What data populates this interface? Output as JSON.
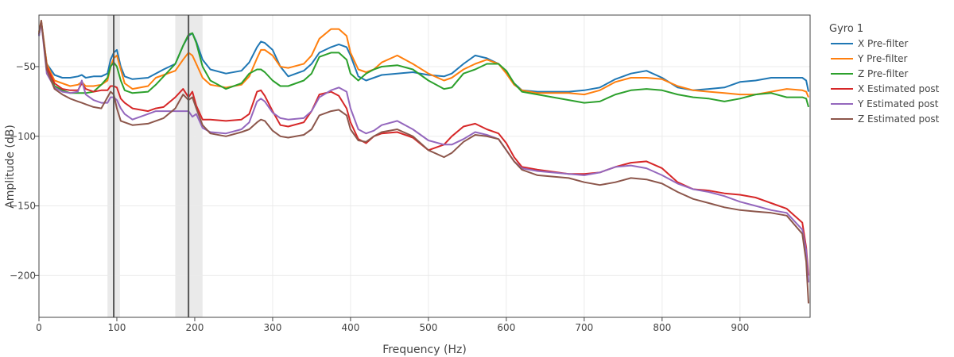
{
  "chart_data": {
    "type": "line",
    "xlabel": "Frequency (Hz)",
    "ylabel": "Amplitude (dB)",
    "xlim": [
      0,
      990
    ],
    "ylim": [
      -230,
      -13
    ],
    "xticks": [
      0,
      100,
      200,
      300,
      400,
      500,
      600,
      700,
      800,
      900
    ],
    "yticks": [
      -200,
      -150,
      -100,
      -50
    ],
    "grid": true,
    "legend": {
      "title": "Gyro 1",
      "placement": "right"
    },
    "bands": [
      {
        "from": 88,
        "to": 104,
        "center": 96
      },
      {
        "from": 175,
        "to": 210,
        "center": 192
      }
    ],
    "series": [
      {
        "name": "X Pre-filter",
        "color": "#1f77b4",
        "x": [
          0,
          3,
          10,
          20,
          30,
          40,
          50,
          55,
          60,
          70,
          80,
          88,
          92,
          96,
          100,
          105,
          110,
          120,
          140,
          150,
          160,
          175,
          185,
          192,
          197,
          202,
          210,
          220,
          240,
          260,
          270,
          280,
          285,
          290,
          300,
          310,
          320,
          340,
          350,
          360,
          375,
          385,
          395,
          400,
          410,
          420,
          430,
          440,
          460,
          480,
          500,
          520,
          530,
          545,
          560,
          575,
          590,
          600,
          610,
          620,
          640,
          680,
          700,
          720,
          740,
          760,
          780,
          800,
          820,
          840,
          860,
          880,
          900,
          920,
          940,
          960,
          980,
          985,
          988
        ],
        "y": [
          -28,
          -18,
          -48,
          -56,
          -58,
          -58,
          -57,
          -56,
          -58,
          -57,
          -57,
          -55,
          -45,
          -40,
          -38,
          -50,
          -57,
          -59,
          -58,
          -55,
          -52,
          -48,
          -35,
          -28,
          -26,
          -32,
          -45,
          -52,
          -55,
          -53,
          -47,
          -36,
          -32,
          -33,
          -38,
          -50,
          -57,
          -53,
          -48,
          -40,
          -36,
          -34,
          -36,
          -42,
          -57,
          -60,
          -58,
          -56,
          -55,
          -54,
          -56,
          -57,
          -55,
          -48,
          -42,
          -44,
          -48,
          -54,
          -62,
          -67,
          -68,
          -68,
          -67,
          -65,
          -59,
          -55,
          -53,
          -58,
          -65,
          -67,
          -66,
          -65,
          -61,
          -60,
          -58,
          -58,
          -58,
          -60,
          -68
        ]
      },
      {
        "name": "Y Pre-filter",
        "color": "#ff7f0e",
        "x": [
          0,
          3,
          10,
          20,
          30,
          40,
          50,
          55,
          60,
          70,
          80,
          88,
          92,
          96,
          100,
          105,
          110,
          120,
          140,
          150,
          160,
          175,
          185,
          192,
          197,
          202,
          210,
          220,
          240,
          260,
          270,
          280,
          285,
          290,
          300,
          310,
          320,
          340,
          350,
          360,
          375,
          385,
          395,
          400,
          410,
          420,
          430,
          440,
          460,
          480,
          500,
          520,
          530,
          545,
          560,
          575,
          590,
          600,
          610,
          620,
          640,
          680,
          700,
          720,
          740,
          760,
          780,
          800,
          820,
          840,
          860,
          880,
          900,
          920,
          940,
          960,
          980,
          985,
          988
        ],
        "y": [
          -25,
          -17,
          -48,
          -60,
          -62,
          -64,
          -63,
          -61,
          -64,
          -64,
          -63,
          -60,
          -50,
          -44,
          -42,
          -52,
          -62,
          -66,
          -64,
          -58,
          -56,
          -53,
          -45,
          -40,
          -42,
          -48,
          -58,
          -63,
          -65,
          -63,
          -57,
          -44,
          -38,
          -38,
          -42,
          -50,
          -51,
          -48,
          -42,
          -30,
          -23,
          -23,
          -28,
          -40,
          -52,
          -54,
          -52,
          -47,
          -42,
          -48,
          -55,
          -60,
          -58,
          -52,
          -48,
          -45,
          -48,
          -55,
          -63,
          -67,
          -69,
          -69,
          -70,
          -67,
          -61,
          -58,
          -58,
          -59,
          -64,
          -67,
          -68,
          -69,
          -70,
          -70,
          -68,
          -66,
          -67,
          -68,
          -72
        ]
      },
      {
        "name": "Z Pre-filter",
        "color": "#2ca02c",
        "x": [
          0,
          3,
          10,
          20,
          30,
          40,
          50,
          55,
          60,
          70,
          80,
          88,
          92,
          96,
          100,
          105,
          110,
          120,
          140,
          150,
          160,
          175,
          185,
          192,
          197,
          202,
          210,
          220,
          240,
          260,
          270,
          280,
          285,
          290,
          300,
          310,
          320,
          340,
          350,
          360,
          375,
          385,
          395,
          400,
          410,
          420,
          430,
          440,
          460,
          480,
          500,
          520,
          530,
          545,
          560,
          575,
          590,
          600,
          610,
          620,
          640,
          680,
          700,
          720,
          740,
          760,
          780,
          800,
          820,
          840,
          860,
          880,
          900,
          920,
          940,
          960,
          980,
          985,
          988
        ],
        "y": [
          -27,
          -18,
          -50,
          -64,
          -67,
          -69,
          -69,
          -69,
          -69,
          -68,
          -63,
          -58,
          -50,
          -47,
          -50,
          -60,
          -67,
          -69,
          -68,
          -63,
          -57,
          -48,
          -35,
          -27,
          -26,
          -33,
          -50,
          -60,
          -66,
          -62,
          -55,
          -52,
          -52,
          -54,
          -60,
          -64,
          -64,
          -60,
          -55,
          -43,
          -40,
          -40,
          -45,
          -55,
          -60,
          -55,
          -52,
          -50,
          -49,
          -52,
          -60,
          -66,
          -65,
          -55,
          -52,
          -48,
          -48,
          -53,
          -62,
          -68,
          -70,
          -74,
          -76,
          -75,
          -70,
          -67,
          -66,
          -67,
          -70,
          -72,
          -73,
          -75,
          -73,
          -70,
          -69,
          -72,
          -72,
          -73,
          -79
        ]
      },
      {
        "name": "X Estimated post",
        "color": "#d62728",
        "x": [
          0,
          3,
          10,
          20,
          30,
          40,
          50,
          55,
          60,
          70,
          80,
          88,
          92,
          96,
          100,
          105,
          110,
          120,
          140,
          150,
          160,
          175,
          185,
          192,
          197,
          202,
          210,
          220,
          240,
          260,
          270,
          280,
          285,
          290,
          300,
          310,
          320,
          340,
          350,
          360,
          375,
          385,
          395,
          400,
          410,
          420,
          430,
          440,
          460,
          480,
          500,
          520,
          530,
          545,
          560,
          575,
          590,
          600,
          610,
          620,
          640,
          680,
          700,
          720,
          740,
          760,
          780,
          800,
          820,
          840,
          860,
          880,
          900,
          920,
          940,
          960,
          980,
          985,
          988
        ],
        "y": [
          -27,
          -18,
          -50,
          -62,
          -66,
          -67,
          -67,
          -62,
          -66,
          -68,
          -67,
          -67,
          -64,
          -64,
          -65,
          -73,
          -76,
          -80,
          -82,
          -80,
          -79,
          -72,
          -66,
          -72,
          -68,
          -78,
          -88,
          -88,
          -89,
          -88,
          -84,
          -68,
          -67,
          -71,
          -82,
          -92,
          -93,
          -90,
          -82,
          -70,
          -68,
          -71,
          -80,
          -90,
          -102,
          -105,
          -100,
          -98,
          -97,
          -101,
          -110,
          -106,
          -100,
          -93,
          -91,
          -95,
          -98,
          -105,
          -115,
          -122,
          -124,
          -127,
          -127,
          -126,
          -122,
          -119,
          -118,
          -123,
          -133,
          -138,
          -139,
          -141,
          -142,
          -144,
          -148,
          -152,
          -162,
          -180,
          -200
        ]
      },
      {
        "name": "Y Estimated post",
        "color": "#9467bd",
        "x": [
          0,
          3,
          10,
          20,
          30,
          40,
          50,
          55,
          60,
          70,
          80,
          88,
          92,
          96,
          100,
          105,
          110,
          120,
          140,
          150,
          160,
          175,
          185,
          192,
          197,
          202,
          210,
          220,
          240,
          260,
          270,
          280,
          285,
          290,
          300,
          310,
          320,
          340,
          350,
          360,
          375,
          385,
          395,
          400,
          410,
          420,
          430,
          440,
          460,
          480,
          500,
          520,
          530,
          545,
          560,
          575,
          590,
          600,
          610,
          620,
          640,
          680,
          700,
          720,
          740,
          760,
          780,
          800,
          820,
          840,
          860,
          880,
          900,
          920,
          940,
          960,
          980,
          985,
          988
        ],
        "y": [
          -28,
          -18,
          -55,
          -65,
          -68,
          -69,
          -68,
          -60,
          -70,
          -74,
          -76,
          -76,
          -72,
          -72,
          -74,
          -80,
          -84,
          -88,
          -84,
          -82,
          -82,
          -82,
          -82,
          -82,
          -86,
          -84,
          -94,
          -97,
          -98,
          -95,
          -90,
          -75,
          -73,
          -75,
          -83,
          -87,
          -88,
          -87,
          -82,
          -72,
          -67,
          -65,
          -68,
          -80,
          -95,
          -98,
          -96,
          -92,
          -89,
          -95,
          -103,
          -106,
          -106,
          -102,
          -97,
          -99,
          -102,
          -110,
          -118,
          -123,
          -125,
          -127,
          -128,
          -126,
          -122,
          -121,
          -123,
          -128,
          -134,
          -138,
          -140,
          -143,
          -147,
          -150,
          -153,
          -155,
          -167,
          -182,
          -205
        ]
      },
      {
        "name": "Z Estimated post",
        "color": "#8c564b",
        "x": [
          0,
          3,
          10,
          20,
          30,
          40,
          50,
          55,
          60,
          70,
          80,
          88,
          92,
          96,
          100,
          105,
          110,
          120,
          140,
          150,
          160,
          175,
          185,
          192,
          197,
          202,
          210,
          220,
          240,
          260,
          270,
          280,
          285,
          290,
          300,
          310,
          320,
          340,
          350,
          360,
          375,
          385,
          395,
          400,
          410,
          420,
          430,
          440,
          460,
          480,
          500,
          520,
          530,
          545,
          560,
          575,
          590,
          600,
          610,
          620,
          640,
          680,
          700,
          720,
          740,
          760,
          780,
          800,
          820,
          840,
          860,
          880,
          900,
          920,
          940,
          960,
          980,
          985,
          988
        ],
        "y": [
          -26,
          -17,
          -52,
          -66,
          -70,
          -73,
          -75,
          -76,
          -77,
          -79,
          -80,
          -72,
          -68,
          -70,
          -80,
          -89,
          -90,
          -92,
          -91,
          -89,
          -87,
          -80,
          -70,
          -74,
          -72,
          -80,
          -92,
          -98,
          -100,
          -97,
          -95,
          -90,
          -88,
          -89,
          -96,
          -100,
          -101,
          -99,
          -95,
          -85,
          -82,
          -81,
          -85,
          -95,
          -103,
          -104,
          -100,
          -97,
          -95,
          -100,
          -110,
          -115,
          -112,
          -104,
          -99,
          -100,
          -102,
          -110,
          -118,
          -124,
          -128,
          -130,
          -133,
          -135,
          -133,
          -130,
          -131,
          -134,
          -140,
          -145,
          -148,
          -151,
          -153,
          -154,
          -155,
          -157,
          -170,
          -190,
          -220
        ]
      }
    ]
  }
}
